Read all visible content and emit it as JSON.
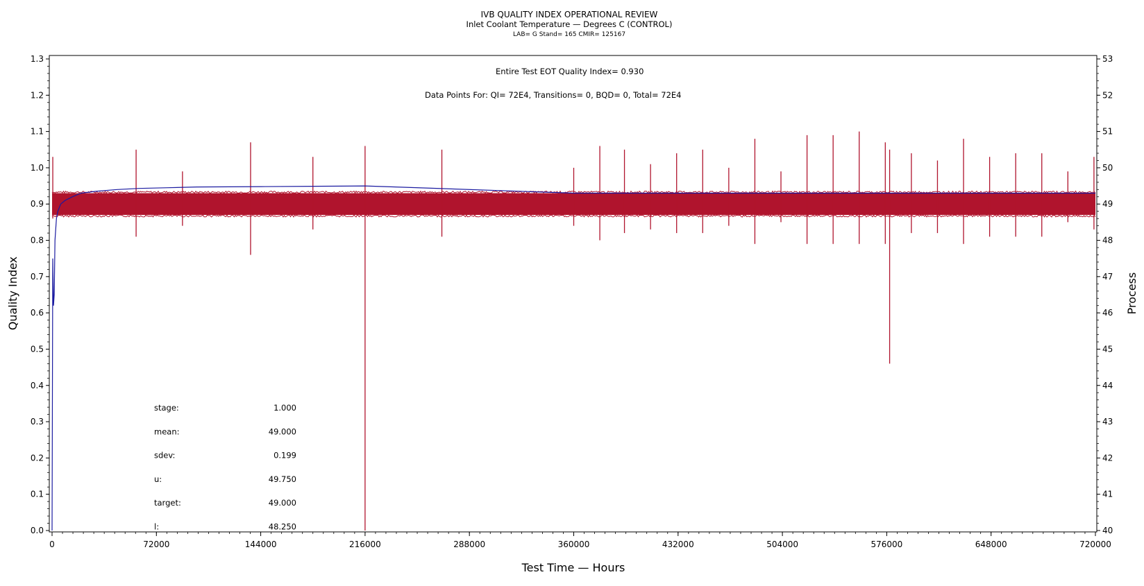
{
  "chart_data": {
    "type": "line",
    "title": "IVB QUALITY INDEX OPERATIONAL REVIEW",
    "subtitle": "Inlet Coolant Temperature — Degrees C (CONTROL)",
    "subtitle2": "LAB= G Stand= 165 CMIR= 125167",
    "xlabel": "Test Time — Hours",
    "ylabel": "Quality Index",
    "y2label": "Process",
    "xlim": [
      0,
      720000
    ],
    "ylim": [
      0.0,
      1.3
    ],
    "y2lim": [
      40,
      53
    ],
    "x_ticks": [
      0,
      72000,
      144000,
      216000,
      288000,
      360000,
      432000,
      504000,
      576000,
      648000,
      720000
    ],
    "y_ticks": [
      "0.0",
      "0.1",
      "0.2",
      "0.3",
      "0.4",
      "0.5",
      "0.6",
      "0.7",
      "0.8",
      "0.9",
      "1.0",
      "1.1",
      "1.2",
      "1.3"
    ],
    "y2_ticks": [
      "40",
      "41",
      "42",
      "43",
      "44",
      "45",
      "46",
      "47",
      "48",
      "49",
      "50",
      "51",
      "52",
      "53"
    ],
    "annotations": {
      "eot": "Entire Test EOT Quality Index=   0.930",
      "points": "Data Points For: QI=  72E4, Transitions=      0, BQD=      0, Total=  72E4"
    },
    "stats": [
      {
        "label": "stage:",
        "value": "1.000"
      },
      {
        "label": "mean:",
        "value": "49.000"
      },
      {
        "label": "sdev:",
        "value": "0.199"
      },
      {
        "label": "u:",
        "value": "49.750"
      },
      {
        "label": "target:",
        "value": "49.000"
      },
      {
        "label": "l:",
        "value": "48.250"
      }
    ],
    "series": [
      {
        "axis": "left",
        "color": "#1a1aa0",
        "x": [
          0,
          500,
          1000,
          1500,
          2000,
          3000,
          4000,
          6000,
          9000,
          14000,
          20000,
          30000,
          45000,
          60000,
          80000,
          100000,
          144000,
          180000,
          216000,
          360000,
          576000,
          700000,
          720000
        ],
        "y": [
          0.0,
          0.75,
          0.62,
          0.65,
          0.8,
          0.86,
          0.88,
          0.9,
          0.91,
          0.92,
          0.93,
          0.935,
          0.94,
          0.943,
          0.945,
          0.947,
          0.948,
          0.949,
          0.95,
          0.93,
          0.93,
          0.93,
          0.93
        ]
      },
      {
        "axis": "right",
        "color": "#b0142d",
        "band": [
          48.7,
          49.3
        ],
        "spikes": [
          {
            "x": 500,
            "hi": 50.3,
            "lo": 48.6
          },
          {
            "x": 58000,
            "hi": 50.5,
            "lo": 48.1
          },
          {
            "x": 90000,
            "hi": 49.9,
            "lo": 48.4
          },
          {
            "x": 137000,
            "hi": 50.7,
            "lo": 47.6
          },
          {
            "x": 180000,
            "hi": 50.3,
            "lo": 48.3
          },
          {
            "x": 216000,
            "hi": 50.6,
            "lo": 40.0
          },
          {
            "x": 269000,
            "hi": 50.5,
            "lo": 48.1
          },
          {
            "x": 360000,
            "hi": 50.0,
            "lo": 48.4
          },
          {
            "x": 378000,
            "hi": 50.6,
            "lo": 48.0
          },
          {
            "x": 395000,
            "hi": 50.5,
            "lo": 48.2
          },
          {
            "x": 413000,
            "hi": 50.1,
            "lo": 48.3
          },
          {
            "x": 431000,
            "hi": 50.4,
            "lo": 48.2
          },
          {
            "x": 449000,
            "hi": 50.5,
            "lo": 48.2
          },
          {
            "x": 467000,
            "hi": 50.0,
            "lo": 48.4
          },
          {
            "x": 485000,
            "hi": 50.8,
            "lo": 47.9
          },
          {
            "x": 503000,
            "hi": 49.9,
            "lo": 48.5
          },
          {
            "x": 521000,
            "hi": 50.9,
            "lo": 47.9
          },
          {
            "x": 539000,
            "hi": 50.9,
            "lo": 47.9
          },
          {
            "x": 557000,
            "hi": 51.0,
            "lo": 47.9
          },
          {
            "x": 575000,
            "hi": 50.7,
            "lo": 47.9
          },
          {
            "x": 578000,
            "hi": 50.5,
            "lo": 44.6
          },
          {
            "x": 593000,
            "hi": 50.4,
            "lo": 48.2
          },
          {
            "x": 611000,
            "hi": 50.2,
            "lo": 48.2
          },
          {
            "x": 629000,
            "hi": 50.8,
            "lo": 47.9
          },
          {
            "x": 647000,
            "hi": 50.3,
            "lo": 48.1
          },
          {
            "x": 665000,
            "hi": 50.4,
            "lo": 48.1
          },
          {
            "x": 683000,
            "hi": 50.4,
            "lo": 48.1
          },
          {
            "x": 701000,
            "hi": 49.9,
            "lo": 48.5
          },
          {
            "x": 719000,
            "hi": 50.3,
            "lo": 48.3
          }
        ]
      }
    ]
  }
}
